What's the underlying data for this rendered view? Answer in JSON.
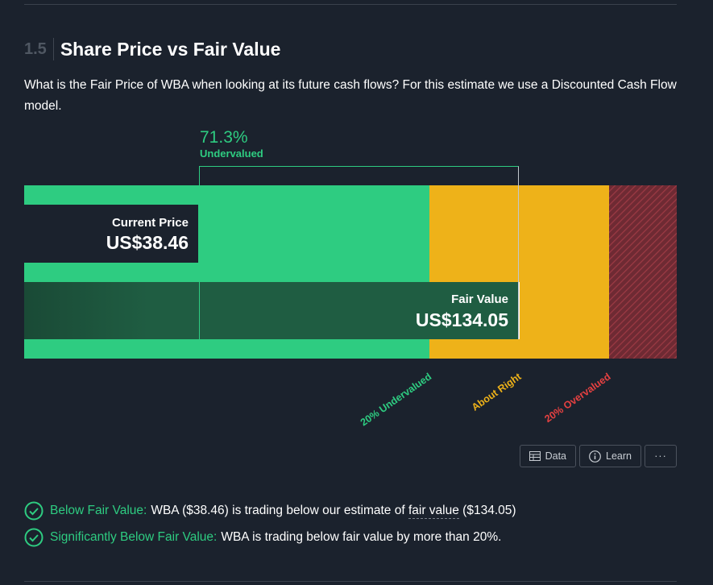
{
  "section": {
    "number": "1.5",
    "title": "Share Price vs Fair Value",
    "description": "What is the Fair Price of WBA when looking at its future cash flows? For this estimate we use a Discounted Cash Flow model."
  },
  "chart_data": {
    "type": "bar",
    "current_price": {
      "label": "Current Price",
      "value": 38.46,
      "display": "US$38.46"
    },
    "fair_value": {
      "label": "Fair Value",
      "value": 134.05,
      "display": "US$134.05"
    },
    "difference": {
      "percent": "71.3%",
      "label": "Undervalued"
    },
    "zones": [
      {
        "label": "20% Undervalued",
        "color": "#2ecc81"
      },
      {
        "label": "About Right",
        "color": "#eeb219"
      },
      {
        "label": "20% Overvalued",
        "color": "#e64141"
      }
    ],
    "colors": {
      "undervalued": "#2ecc81",
      "about_right": "#eeb219",
      "overvalued": "#e64141",
      "fair_value_bar": "#1f5d42",
      "background": "#1b222d"
    }
  },
  "buttons": {
    "data_label": "Data",
    "data_icon": "table-icon",
    "learn_label": "Learn",
    "learn_icon": "info-icon",
    "more_label": "···"
  },
  "checks": [
    {
      "name": "Below Fair Value:",
      "text_before": "WBA ($38.46) is trading below our estimate of ",
      "link": "fair value",
      "text_after": " ($134.05)"
    },
    {
      "name": "Significantly Below Fair Value:",
      "text": "WBA is trading below fair value by more than 20%."
    }
  ]
}
